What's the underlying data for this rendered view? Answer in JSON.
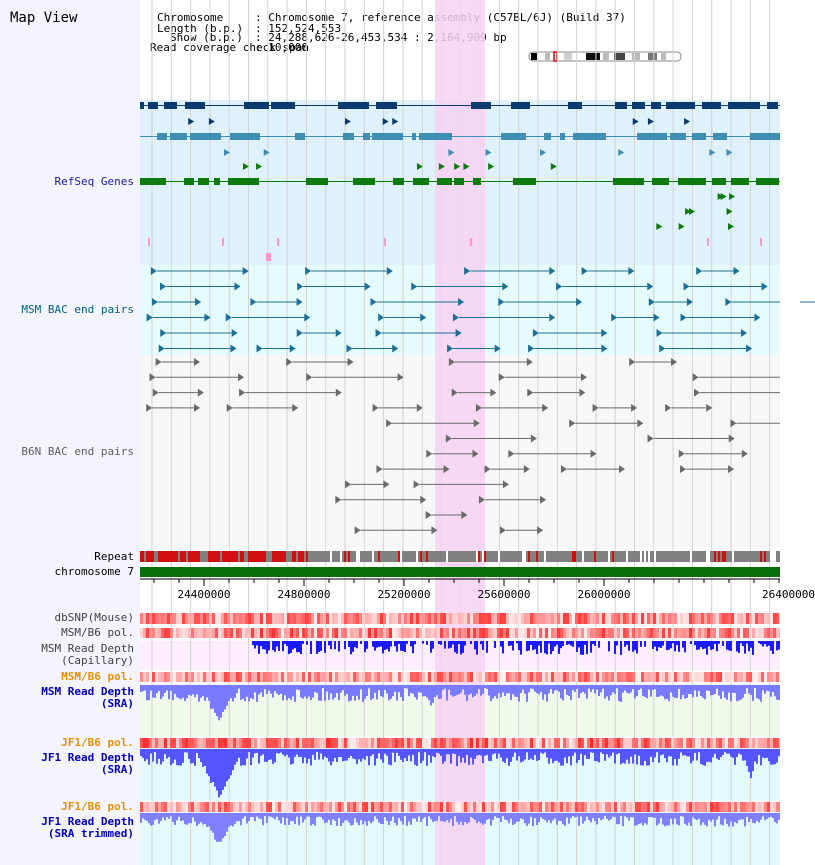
{
  "title": "Map View",
  "header": {
    "chromosome_key": "Chromosome",
    "chromosome_val": ": Chromosome 7, reference assembly (C57BL/6J) (Build 37)",
    "length_key": "Length (b.p.)",
    "length_val": ": 152,524,553",
    "show_key": "Show (b.p.)",
    "show_val": ": 24,288,626-26,453,534 : 2,164,909 bp",
    "coverage_key": "Read coverage check span",
    "coverage_val": ": 10,000"
  },
  "labels": {
    "refseq": "RefSeq Genes",
    "msm_bac": "MSM BAC end pairs",
    "b6n_bac": "B6N BAC end pairs",
    "repeat": "Repeat",
    "chromosome": "chromosome 7",
    "dbsnp": "dbSNP(Mouse)",
    "msm_b6_pol_1": "MSM/B6 pol.",
    "msm_read_depth_cap_1": "MSM Read Depth",
    "msm_read_depth_cap_2": "(Capillary)",
    "msm_b6_pol_2": "MSM/B6 pol.",
    "msm_read_depth_sra_1": "MSM Read Depth",
    "msm_read_depth_sra_2": "(SRA)",
    "jf1_b6_pol_1": "JF1/B6 pol.",
    "jf1_read_depth_sra_1": "JF1 Read Depth",
    "jf1_read_depth_sra_2": "(SRA)",
    "jf1_b6_pol_2": "JF1/B6 pol.",
    "jf1_read_depth_trim_1": "JF1 Read Depth",
    "jf1_read_depth_trim_2": "(SRA trimmed)"
  },
  "axis": {
    "ticks": [
      "24400000",
      "24800000",
      "25200000",
      "25600000",
      "26000000",
      "26400000"
    ]
  },
  "colors": {
    "refseq_label": "#1a1a9a",
    "msm_label": "#006080",
    "b6n_label": "#606060",
    "orange_label": "#e89000",
    "blue_label": "#0000c0",
    "highlight": "#f7d2f2",
    "gene_dark": "#0b3a6e",
    "gene_mid": "#3f8fb5",
    "gene_green": "#0d7a0d"
  }
}
